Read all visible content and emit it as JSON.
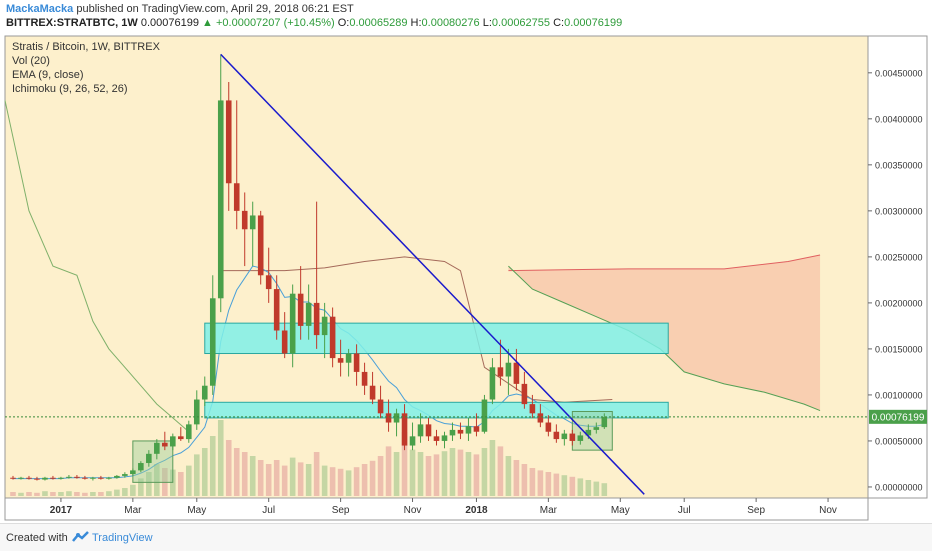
{
  "header": {
    "user": "MackaMacka",
    "published_text": "published on TradingView.com, April 29, 2018 06:21 EST",
    "symbol": "BITTREX:STRATBTC, 1W",
    "last": "0.00076199",
    "change": "▲ +0.00007207 (+10.45%)",
    "o_label": "O:",
    "o_value": "0.00065289",
    "h_label": "H:",
    "h_value": "0.00080276",
    "l_label": "L:",
    "l_value": "0.00062755",
    "c_label": "C:",
    "c_value": "0.00076199"
  },
  "legend": [
    "Stratis / Bitcoin, 1W, BITTREX",
    "Vol (20)",
    "EMA (9, close)",
    "Ichimoku (9, 26, 52, 26)"
  ],
  "price_badge": "0.00076199",
  "footer": {
    "created_with": "Created with",
    "brand": "TradingView"
  },
  "colors": {
    "up": "#4aa04a",
    "down": "#c0392b",
    "trendline": "#1a1acc",
    "zone": "#7ff0e8",
    "cloud": "#f7c4a8",
    "background": "#fdf0cc"
  },
  "chart_data": {
    "type": "candlestick",
    "x_ticks": [
      {
        "label": "2017",
        "week": 7
      },
      {
        "label": "Mar",
        "week": 16
      },
      {
        "label": "May",
        "week": 24
      },
      {
        "label": "Jul",
        "week": 33
      },
      {
        "label": "Sep",
        "week": 42
      },
      {
        "label": "Nov",
        "week": 51
      },
      {
        "label": "2018",
        "week": 59
      },
      {
        "label": "Mar",
        "week": 68
      },
      {
        "label": "May",
        "week": 77
      },
      {
        "label": "Jul",
        "week": 85
      },
      {
        "label": "Sep",
        "week": 94
      },
      {
        "label": "Nov",
        "week": 103
      }
    ],
    "x_range": [
      0,
      108
    ],
    "ylim": [
      -0.00012,
      0.0049
    ],
    "y_ticks": [
      "0.00450000",
      "0.00400000",
      "0.00350000",
      "0.00300000",
      "0.00250000",
      "0.00200000",
      "0.00150000",
      "0.00100000",
      "0.00050000",
      "0.00000000"
    ],
    "y_tick_values": [
      0.0045,
      0.004,
      0.0035,
      0.003,
      0.0025,
      0.002,
      0.0015,
      0.001,
      0.0005,
      0.0
    ],
    "last_price": 0.00076199,
    "candles": [
      {
        "o": 0.0001,
        "h": 0.00012,
        "l": 8e-05,
        "c": 9e-05
      },
      {
        "o": 9e-05,
        "h": 0.00011,
        "l": 8e-05,
        "c": 0.0001
      },
      {
        "o": 0.0001,
        "h": 0.00012,
        "l": 8e-05,
        "c": 9e-05
      },
      {
        "o": 9e-05,
        "h": 0.00011,
        "l": 7e-05,
        "c": 8e-05
      },
      {
        "o": 8e-05,
        "h": 0.00011,
        "l": 7e-05,
        "c": 0.0001
      },
      {
        "o": 0.0001,
        "h": 0.00012,
        "l": 8e-05,
        "c": 9e-05
      },
      {
        "o": 9e-05,
        "h": 0.00011,
        "l": 8e-05,
        "c": 0.0001
      },
      {
        "o": 0.0001,
        "h": 0.00013,
        "l": 9e-05,
        "c": 0.00011
      },
      {
        "o": 0.00011,
        "h": 0.00013,
        "l": 9e-05,
        "c": 0.0001
      },
      {
        "o": 0.0001,
        "h": 0.00012,
        "l": 8e-05,
        "c": 9e-05
      },
      {
        "o": 9e-05,
        "h": 0.00011,
        "l": 7e-05,
        "c": 0.0001
      },
      {
        "o": 0.0001,
        "h": 0.00012,
        "l": 8e-05,
        "c": 9e-05
      },
      {
        "o": 9e-05,
        "h": 0.00011,
        "l": 8e-05,
        "c": 0.0001
      },
      {
        "o": 0.0001,
        "h": 0.00013,
        "l": 9e-05,
        "c": 0.00012
      },
      {
        "o": 0.00012,
        "h": 0.00016,
        "l": 0.0001,
        "c": 0.00014
      },
      {
        "o": 0.00014,
        "h": 0.0002,
        "l": 0.00012,
        "c": 0.00018
      },
      {
        "o": 0.00018,
        "h": 0.00028,
        "l": 0.00016,
        "c": 0.00026
      },
      {
        "o": 0.00026,
        "h": 0.0004,
        "l": 0.00022,
        "c": 0.00036
      },
      {
        "o": 0.00036,
        "h": 0.00052,
        "l": 0.0003,
        "c": 0.00048
      },
      {
        "o": 0.00048,
        "h": 0.0006,
        "l": 0.0004,
        "c": 0.00044
      },
      {
        "o": 0.00044,
        "h": 0.00058,
        "l": 0.0004,
        "c": 0.00055
      },
      {
        "o": 0.00055,
        "h": 0.00065,
        "l": 0.0005,
        "c": 0.00052
      },
      {
        "o": 0.00052,
        "h": 0.00072,
        "l": 0.00048,
        "c": 0.00068
      },
      {
        "o": 0.00068,
        "h": 0.00105,
        "l": 0.00062,
        "c": 0.00095
      },
      {
        "o": 0.00095,
        "h": 0.0012,
        "l": 0.00088,
        "c": 0.0011
      },
      {
        "o": 0.0011,
        "h": 0.0023,
        "l": 0.001,
        "c": 0.00205
      },
      {
        "o": 0.00205,
        "h": 0.0047,
        "l": 0.0019,
        "c": 0.0042
      },
      {
        "o": 0.0042,
        "h": 0.0044,
        "l": 0.003,
        "c": 0.0033
      },
      {
        "o": 0.0033,
        "h": 0.0042,
        "l": 0.0028,
        "c": 0.003
      },
      {
        "o": 0.003,
        "h": 0.0032,
        "l": 0.0024,
        "c": 0.0028
      },
      {
        "o": 0.0028,
        "h": 0.0031,
        "l": 0.0024,
        "c": 0.00295
      },
      {
        "o": 0.00295,
        "h": 0.003,
        "l": 0.0022,
        "c": 0.0023
      },
      {
        "o": 0.0023,
        "h": 0.0026,
        "l": 0.002,
        "c": 0.00215
      },
      {
        "o": 0.00215,
        "h": 0.0023,
        "l": 0.0016,
        "c": 0.0017
      },
      {
        "o": 0.0017,
        "h": 0.0019,
        "l": 0.0014,
        "c": 0.00145
      },
      {
        "o": 0.00145,
        "h": 0.0022,
        "l": 0.0013,
        "c": 0.0021
      },
      {
        "o": 0.0021,
        "h": 0.0024,
        "l": 0.0016,
        "c": 0.00175
      },
      {
        "o": 0.00175,
        "h": 0.0022,
        "l": 0.0016,
        "c": 0.002
      },
      {
        "o": 0.002,
        "h": 0.0031,
        "l": 0.0015,
        "c": 0.00165
      },
      {
        "o": 0.00165,
        "h": 0.002,
        "l": 0.0014,
        "c": 0.00185
      },
      {
        "o": 0.00185,
        "h": 0.00195,
        "l": 0.0013,
        "c": 0.0014
      },
      {
        "o": 0.0014,
        "h": 0.0016,
        "l": 0.0012,
        "c": 0.00135
      },
      {
        "o": 0.00135,
        "h": 0.0015,
        "l": 0.0012,
        "c": 0.00145
      },
      {
        "o": 0.00145,
        "h": 0.00155,
        "l": 0.0011,
        "c": 0.00125
      },
      {
        "o": 0.00125,
        "h": 0.00135,
        "l": 0.001,
        "c": 0.0011
      },
      {
        "o": 0.0011,
        "h": 0.00125,
        "l": 0.0009,
        "c": 0.00095
      },
      {
        "o": 0.00095,
        "h": 0.0011,
        "l": 0.00075,
        "c": 0.0008
      },
      {
        "o": 0.0008,
        "h": 0.00095,
        "l": 0.0006,
        "c": 0.0007
      },
      {
        "o": 0.0007,
        "h": 0.00085,
        "l": 0.00055,
        "c": 0.0008
      },
      {
        "o": 0.0008,
        "h": 0.0009,
        "l": 0.0004,
        "c": 0.00045
      },
      {
        "o": 0.00045,
        "h": 0.0007,
        "l": 0.0004,
        "c": 0.00055
      },
      {
        "o": 0.00055,
        "h": 0.0008,
        "l": 0.00048,
        "c": 0.00068
      },
      {
        "o": 0.00068,
        "h": 0.00075,
        "l": 0.0005,
        "c": 0.00055
      },
      {
        "o": 0.00055,
        "h": 0.00062,
        "l": 0.00045,
        "c": 0.0005
      },
      {
        "o": 0.0005,
        "h": 0.0006,
        "l": 0.00042,
        "c": 0.00056
      },
      {
        "o": 0.00056,
        "h": 0.0007,
        "l": 0.0005,
        "c": 0.00062
      },
      {
        "o": 0.00062,
        "h": 0.0007,
        "l": 0.00052,
        "c": 0.00058
      },
      {
        "o": 0.00058,
        "h": 0.00075,
        "l": 0.0005,
        "c": 0.00066
      },
      {
        "o": 0.00066,
        "h": 0.0008,
        "l": 0.00055,
        "c": 0.0006
      },
      {
        "o": 0.0006,
        "h": 0.001,
        "l": 0.00058,
        "c": 0.00095
      },
      {
        "o": 0.00095,
        "h": 0.0014,
        "l": 0.0009,
        "c": 0.0013
      },
      {
        "o": 0.0013,
        "h": 0.0016,
        "l": 0.0011,
        "c": 0.0012
      },
      {
        "o": 0.0012,
        "h": 0.0015,
        "l": 0.001,
        "c": 0.00135
      },
      {
        "o": 0.00135,
        "h": 0.0015,
        "l": 0.00105,
        "c": 0.00112
      },
      {
        "o": 0.00112,
        "h": 0.00125,
        "l": 0.00085,
        "c": 0.0009
      },
      {
        "o": 0.0009,
        "h": 0.001,
        "l": 0.00075,
        "c": 0.0008
      },
      {
        "o": 0.0008,
        "h": 0.0009,
        "l": 0.00065,
        "c": 0.0007
      },
      {
        "o": 0.0007,
        "h": 0.00078,
        "l": 0.00055,
        "c": 0.0006
      },
      {
        "o": 0.0006,
        "h": 0.00068,
        "l": 0.00048,
        "c": 0.00052
      },
      {
        "o": 0.00052,
        "h": 0.00062,
        "l": 0.00045,
        "c": 0.00058
      },
      {
        "o": 0.00058,
        "h": 0.00062,
        "l": 0.00045,
        "c": 0.0005
      },
      {
        "o": 0.0005,
        "h": 0.0006,
        "l": 0.00046,
        "c": 0.00056
      },
      {
        "o": 0.00056,
        "h": 0.00068,
        "l": 0.00052,
        "c": 0.00062
      },
      {
        "o": 0.00062,
        "h": 0.0007,
        "l": 0.00058,
        "c": 0.00065
      },
      {
        "o": 0.00065,
        "h": 0.0008,
        "l": 0.00063,
        "c": 0.00076
      }
    ],
    "volume": [
      0.05,
      0.04,
      0.05,
      0.04,
      0.06,
      0.05,
      0.05,
      0.06,
      0.05,
      0.04,
      0.05,
      0.05,
      0.06,
      0.08,
      0.1,
      0.14,
      0.22,
      0.3,
      0.4,
      0.35,
      0.33,
      0.3,
      0.38,
      0.52,
      0.6,
      0.75,
      0.95,
      0.7,
      0.6,
      0.55,
      0.5,
      0.45,
      0.4,
      0.45,
      0.38,
      0.48,
      0.42,
      0.4,
      0.55,
      0.38,
      0.36,
      0.34,
      0.32,
      0.36,
      0.4,
      0.44,
      0.5,
      0.62,
      0.55,
      0.8,
      0.58,
      0.55,
      0.5,
      0.52,
      0.56,
      0.6,
      0.58,
      0.55,
      0.52,
      0.6,
      0.7,
      0.62,
      0.5,
      0.45,
      0.4,
      0.35,
      0.32,
      0.3,
      0.28,
      0.26,
      0.24,
      0.22,
      0.2,
      0.18,
      0.16
    ],
    "ema9": [
      9e-05,
      9e-05,
      9e-05,
      9e-05,
      9e-05,
      9e-05,
      9e-05,
      0.0001,
      0.0001,
      0.0001,
      0.0001,
      0.0001,
      0.0001,
      0.0001,
      0.00011,
      0.00012,
      0.00015,
      0.00019,
      0.00025,
      0.00029,
      0.00034,
      0.00037,
      0.00043,
      0.00054,
      0.00065,
      0.00093,
      0.00158,
      0.00192,
      0.00214,
      0.00227,
      0.0024,
      0.00238,
      0.00233,
      0.00221,
      0.00206,
      0.00207,
      0.00201,
      0.00201,
      0.00194,
      0.00192,
      0.00182,
      0.00172,
      0.00167,
      0.00159,
      0.00149,
      0.00138,
      0.00126,
      0.00115,
      0.00108,
      0.00095,
      0.00087,
      0.00083,
      0.00078,
      0.00072,
      0.00069,
      0.00068,
      0.00066,
      0.00066,
      0.00065,
      0.00071,
      0.00083,
      0.0009,
      0.00099,
      0.00101,
      0.00099,
      0.00095,
      0.0009,
      0.00084,
      0.00078,
      0.00074,
      0.00069,
      0.00067,
      0.00066,
      0.00066,
      0.00068
    ],
    "zones": [
      {
        "x0": 25,
        "x1": 83,
        "y0": 0.00145,
        "y1": 0.00178
      },
      {
        "x0": 25,
        "x1": 83,
        "y0": 0.00075,
        "y1": 0.00092
      }
    ],
    "boxes": [
      {
        "x0": 16,
        "x1": 21,
        "y0": 5e-05,
        "y1": 0.0005
      },
      {
        "x0": 71,
        "x1": 76,
        "y0": 0.0004,
        "y1": 0.00082
      }
    ],
    "trendline": [
      {
        "x": 27,
        "y": 0.0047
      },
      {
        "x": 80,
        "y": -8e-05
      }
    ],
    "cloud_upper": [
      {
        "x": 63,
        "y": 0.00235
      },
      {
        "x": 70,
        "y": 0.00236
      },
      {
        "x": 78,
        "y": 0.00237
      },
      {
        "x": 90,
        "y": 0.00237
      },
      {
        "x": 98,
        "y": 0.00245
      },
      {
        "x": 102,
        "y": 0.00252
      }
    ],
    "cloud_lower": [
      {
        "x": 63,
        "y": 0.0024
      },
      {
        "x": 66,
        "y": 0.00215
      },
      {
        "x": 70,
        "y": 0.002
      },
      {
        "x": 74,
        "y": 0.00185
      },
      {
        "x": 78,
        "y": 0.0017
      },
      {
        "x": 82,
        "y": 0.0015
      },
      {
        "x": 85,
        "y": 0.00125
      },
      {
        "x": 90,
        "y": 0.00112
      },
      {
        "x": 95,
        "y": 0.00103
      },
      {
        "x": 100,
        "y": 0.0009
      },
      {
        "x": 102,
        "y": 0.00083
      }
    ],
    "green_span": [
      {
        "x": 0,
        "y": 0.0042
      },
      {
        "x": 3,
        "y": 0.003
      },
      {
        "x": 6,
        "y": 0.0024
      },
      {
        "x": 9,
        "y": 0.0023
      },
      {
        "x": 11,
        "y": 0.0018
      },
      {
        "x": 13,
        "y": 0.0015
      },
      {
        "x": 15,
        "y": 0.0013
      },
      {
        "x": 17,
        "y": 0.0011
      },
      {
        "x": 19,
        "y": 0.0009
      },
      {
        "x": 21,
        "y": 0.00075
      },
      {
        "x": 23,
        "y": 0.0006
      }
    ],
    "kijun": [
      {
        "x": 27,
        "y": 0.00235
      },
      {
        "x": 35,
        "y": 0.00235
      },
      {
        "x": 40,
        "y": 0.00238
      },
      {
        "x": 45,
        "y": 0.00245
      },
      {
        "x": 50,
        "y": 0.0025
      },
      {
        "x": 55,
        "y": 0.00245
      },
      {
        "x": 57,
        "y": 0.00235
      },
      {
        "x": 60,
        "y": 0.0013
      },
      {
        "x": 66,
        "y": 0.00095
      },
      {
        "x": 70,
        "y": 0.00092
      },
      {
        "x": 76,
        "y": 0.00095
      }
    ]
  }
}
